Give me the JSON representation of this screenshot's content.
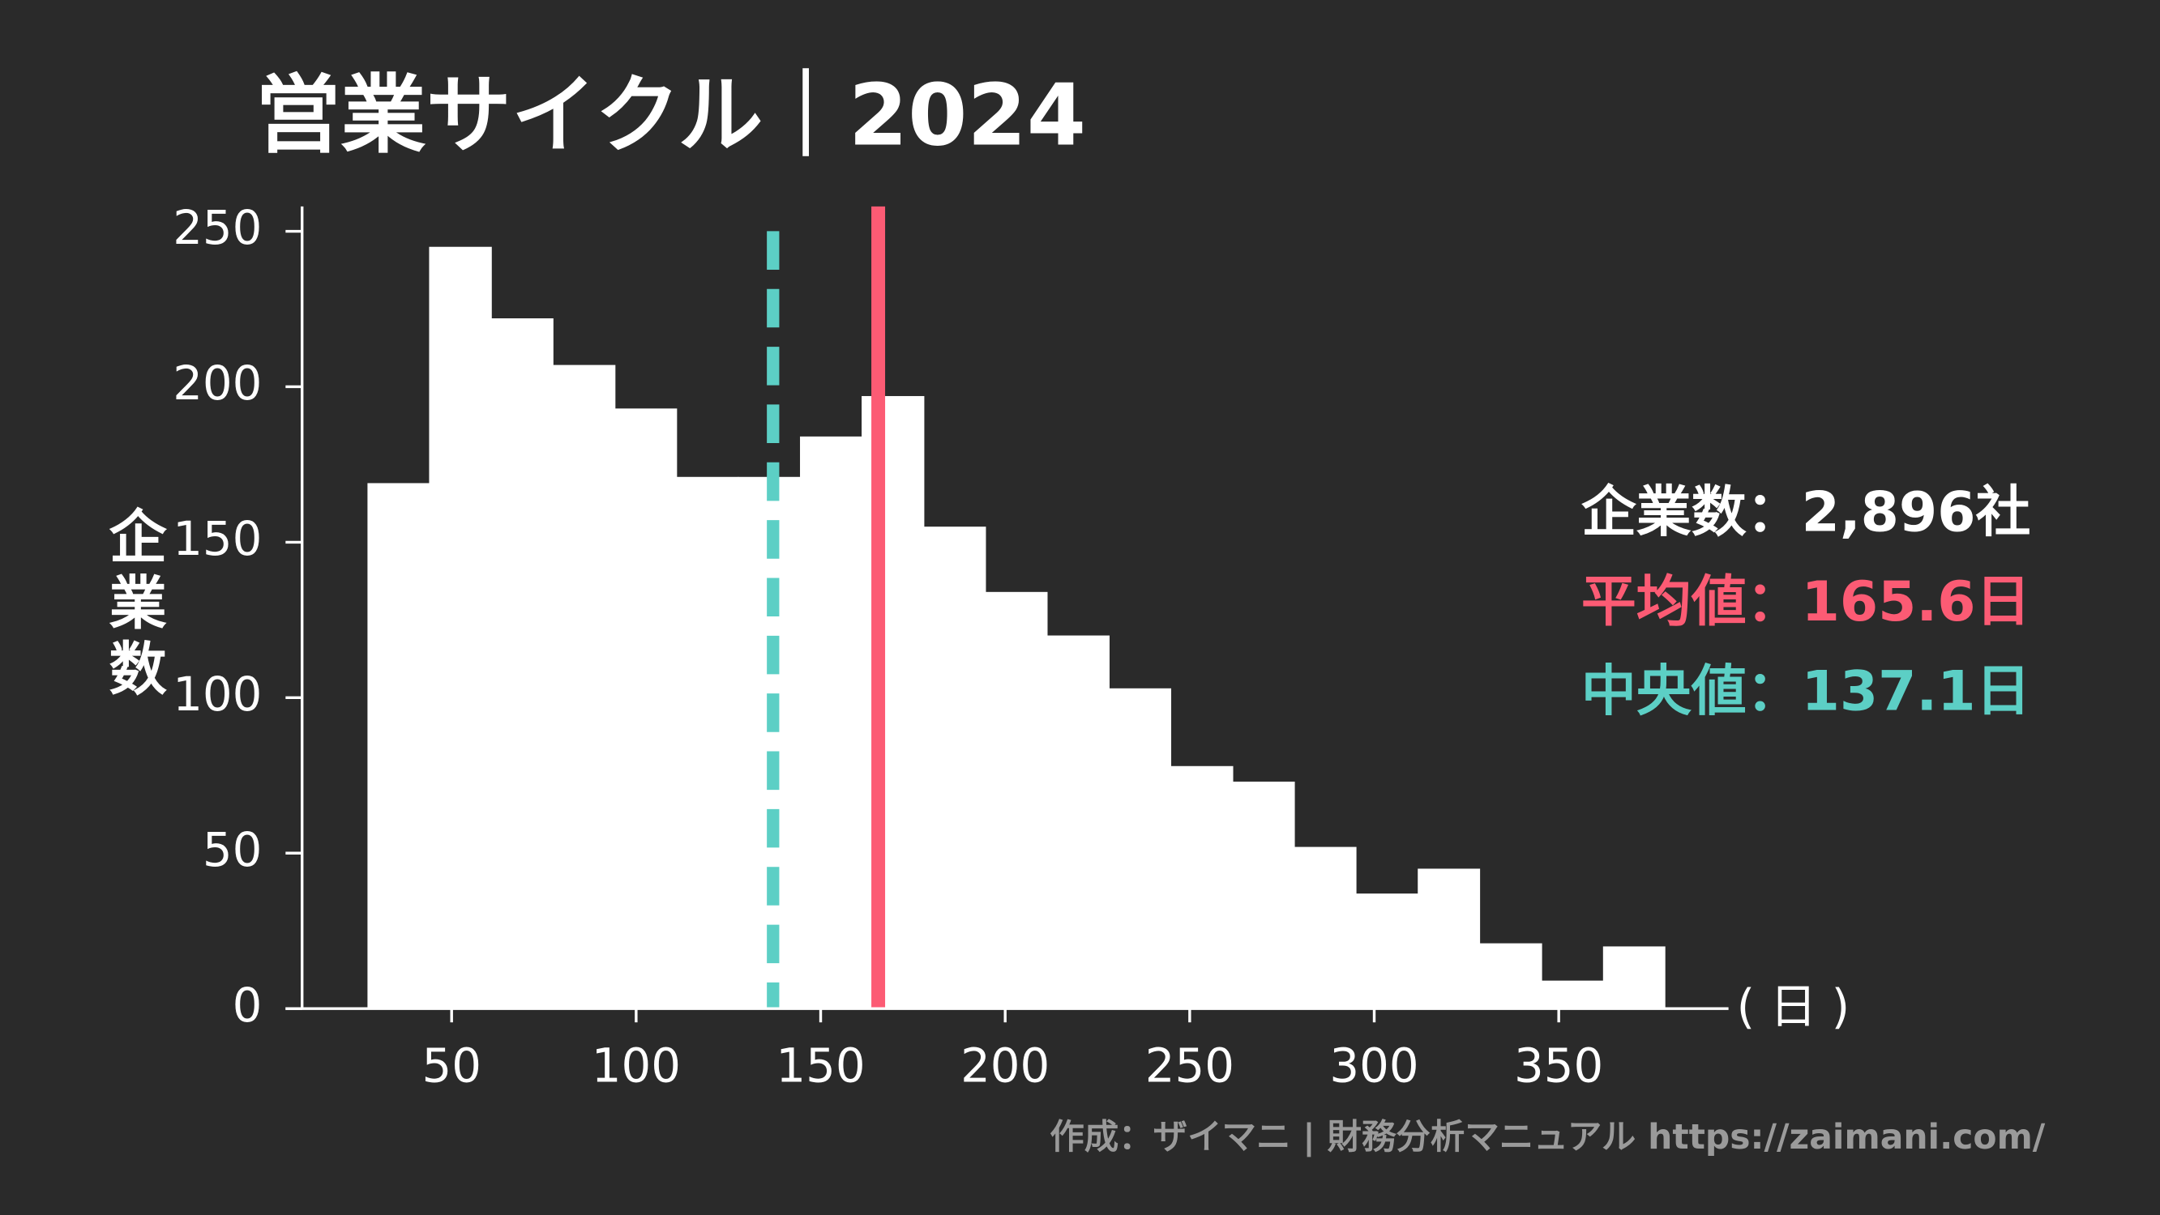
{
  "chart_data": {
    "type": "histogram",
    "title": "営業サイクル｜2024",
    "ylabel": "企業数",
    "xlabel": "( 日 )",
    "bins": [
      27.2,
      43.9,
      60.7,
      77.4,
      94.2,
      110.9,
      127.6,
      144.4,
      161.1,
      177.9,
      194.6,
      211.3,
      228.1,
      244.8,
      261.6,
      278.3,
      295.0,
      311.8,
      328.5,
      345.3,
      362.0,
      378.7
    ],
    "counts": [
      169,
      245,
      222,
      207,
      193,
      171,
      171,
      184,
      197,
      155,
      134,
      120,
      103,
      78,
      73,
      52,
      37,
      45,
      21,
      9,
      20
    ],
    "color": "#ffffff",
    "xlim": [
      5,
      396
    ],
    "xticks": [
      50,
      100,
      150,
      200,
      250,
      300,
      350
    ],
    "ylim": [
      0,
      258
    ],
    "yticks": [
      0,
      50,
      100,
      150,
      200,
      250
    ],
    "mean": 165.6,
    "mean_color": "#fc5b74",
    "median": 137.1,
    "median_color": "#5ccfc5",
    "annotations": [
      {
        "text": "企業数：2,896社",
        "color": "#ffffff"
      },
      {
        "text": "平均値：165.6日",
        "color": "#fc5b74"
      },
      {
        "text": "中央値：137.1日",
        "color": "#5ccfc5"
      }
    ],
    "credit": "作成：ザイマニ | 財務分析マニュアル https://zaimani.com/"
  }
}
